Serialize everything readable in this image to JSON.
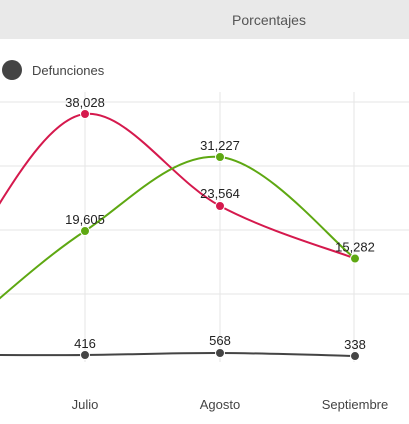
{
  "tabs": [
    {
      "label": "Porcentajes"
    }
  ],
  "legend": [
    {
      "label": "Defunciones",
      "color": "#444444"
    }
  ],
  "chart_data": {
    "type": "line",
    "title": "",
    "xlabel": "",
    "ylabel": "",
    "categories": [
      "Julio",
      "Agosto",
      "Septiembre"
    ],
    "grid": true,
    "series": [
      {
        "name": "",
        "color": "#d5194d",
        "values": [
          38028,
          23564,
          null
        ],
        "labels": [
          "38,028",
          "23,564",
          ""
        ]
      },
      {
        "name": "",
        "color": "#5ea812",
        "values": [
          19605,
          31227,
          15282
        ],
        "labels": [
          "19,605",
          "31,227",
          "15,282"
        ]
      },
      {
        "name": "Defunciones",
        "color": "#444444",
        "values": [
          416,
          568,
          338
        ],
        "labels": [
          "416",
          "568",
          "338"
        ]
      }
    ]
  }
}
